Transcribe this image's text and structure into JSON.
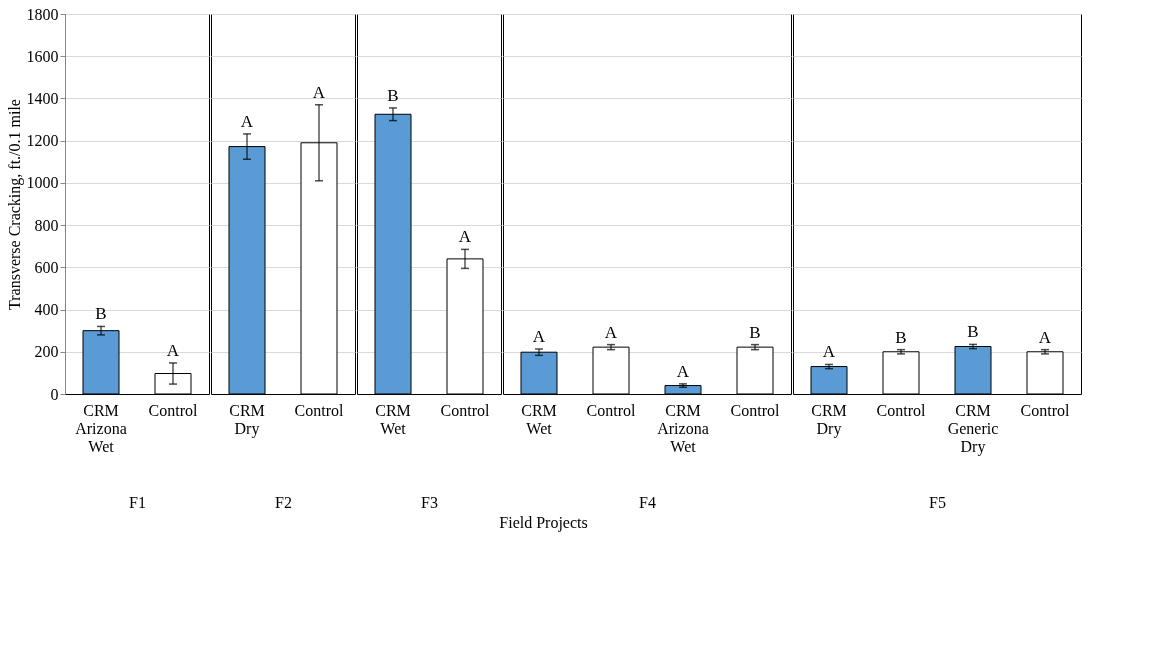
{
  "chart_data": [
    {
      "type": "bar",
      "xlabel": "F1",
      "ylabel": "Transverse Cracking, ft./0.1 mile",
      "annotations": [
        "Field Projects"
      ],
      "categories": [
        "CRM Arizona Wet",
        "Control"
      ],
      "values": [
        300,
        97
      ],
      "colors": [
        "#5b9bd5",
        "#ffffff"
      ],
      "errors": [
        20,
        50
      ],
      "value_labels": [
        "B",
        "A"
      ],
      "ylim": [
        0,
        1800
      ],
      "yticks": [
        0,
        200,
        400,
        600,
        800,
        {
          "value": 1000,
          "label": "1000"
        },
        {
          "value": 1200,
          "label": "1200"
        },
        {
          "value": 1400,
          "label": "1400"
        },
        {
          "value": 1600,
          "label": "1600"
        },
        {
          "value": 1800,
          "label": "1800"
        }
      ],
      "grid": "y"
    },
    {
      "type": "bar",
      "xlabel": "F2",
      "categories": [
        "CRM Dry",
        "Control"
      ],
      "values": [
        1172,
        1190
      ],
      "colors": [
        "#5b9bd5",
        "#ffffff"
      ],
      "errors": [
        60,
        180
      ],
      "value_labels": [
        "A",
        "A"
      ],
      "ylim": [
        0,
        1800
      ],
      "yticks": [
        0,
        200,
        400,
        600,
        800,
        1000,
        1200,
        1400,
        1600,
        1800
      ],
      "grid": "y",
      "tick_labels": "x"
    },
    {
      "type": "bar",
      "xlabel": "F3",
      "categories": [
        "CRM Wet",
        "Control"
      ],
      "values": [
        1325,
        640
      ],
      "colors": [
        "#5b9bd5",
        "#ffffff"
      ],
      "errors": [
        30,
        45
      ],
      "value_labels": [
        "B",
        "A"
      ],
      "ylim": [
        0,
        1800
      ],
      "yticks": [
        0,
        200,
        400,
        600,
        800,
        1000,
        1200,
        1400,
        1600,
        1800
      ],
      "grid": "y",
      "tick_labels": "x"
    },
    {
      "type": "bar",
      "xlabel": "F4",
      "categories": [
        "CRM Wet",
        "Control",
        "CRM Arizona Wet",
        "Control"
      ],
      "values": [
        198,
        222,
        40,
        222
      ],
      "colors": [
        "#5b9bd5",
        "#ffffff",
        "#5b9bd5",
        "#ffffff"
      ],
      "errors": [
        15,
        12,
        8,
        12
      ],
      "value_labels": [
        "A",
        "A",
        "A",
        "B"
      ],
      "ylim": [
        0,
        1800
      ],
      "yticks": [
        0,
        200,
        400,
        600,
        800,
        1000,
        1200,
        1400,
        1600,
        1800
      ],
      "grid": "y",
      "tick_labels": "x"
    },
    {
      "type": "bar",
      "xlabel": "F5",
      "categories": [
        "CRM Dry",
        "Control",
        "CRM Generic Dry",
        "Control"
      ],
      "values": [
        130,
        200,
        225,
        200
      ],
      "colors": [
        "#5b9bd5",
        "#ffffff",
        "#5b9bd5",
        "#ffffff"
      ],
      "errors": [
        10,
        10,
        10,
        10
      ],
      "value_labels": [
        "A",
        "B",
        "B",
        "A"
      ],
      "ylim": [
        0,
        1800
      ],
      "yticks": [
        0,
        200,
        400,
        600,
        800,
        1000,
        1200,
        1400,
        1600,
        1800
      ],
      "grid": "y",
      "tick_labels": "x"
    }
  ]
}
